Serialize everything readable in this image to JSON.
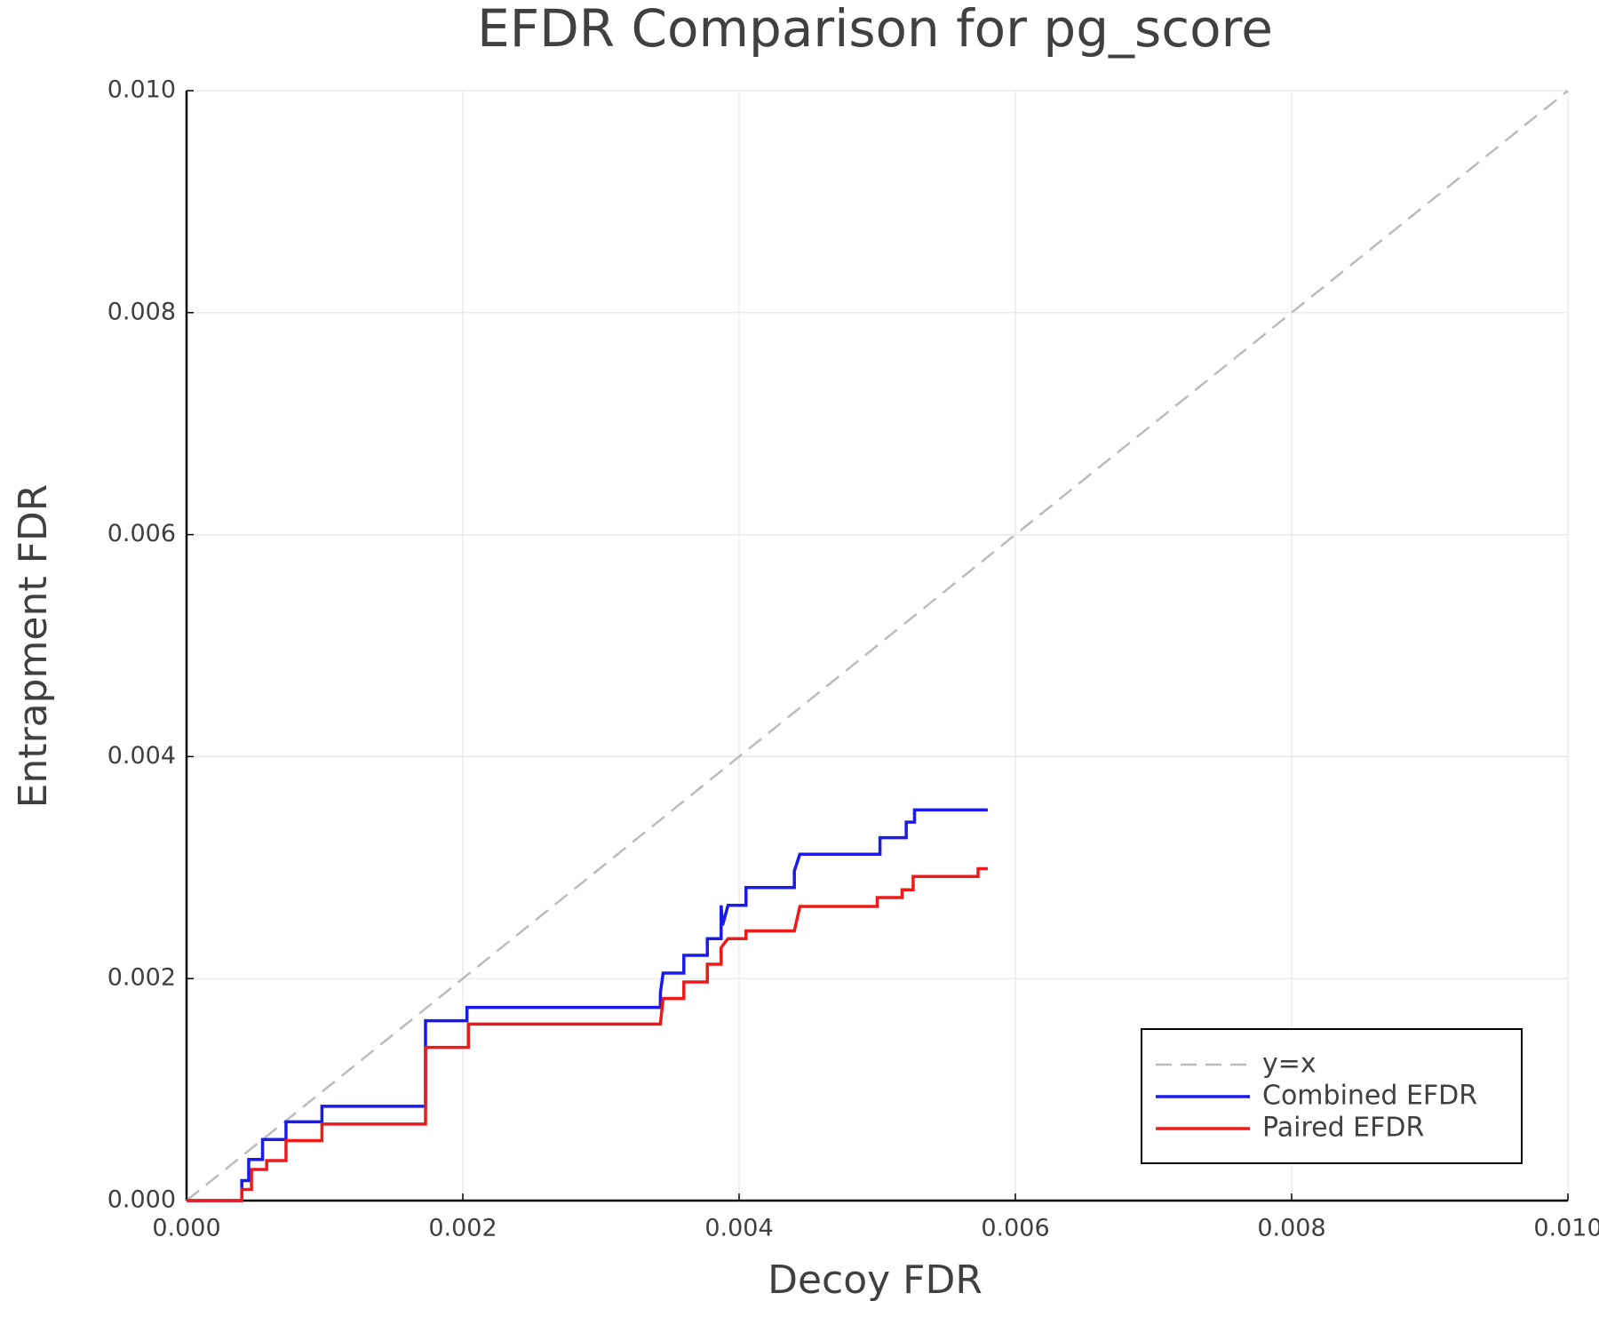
{
  "chart_data": {
    "type": "line",
    "title": "EFDR Comparison for pg_score",
    "x_label": "Decoy FDR",
    "y_label": "Entrapment FDR",
    "xlim": [
      0,
      0.01
    ],
    "ylim": [
      0,
      0.01
    ],
    "xticks": [
      {
        "value": 0,
        "label": "0.000"
      },
      {
        "value": 0.002,
        "label": "0.002"
      },
      {
        "value": 0.004,
        "label": "0.004"
      },
      {
        "value": 0.006,
        "label": "0.006"
      },
      {
        "value": 0.008,
        "label": "0.008"
      },
      {
        "value": 0.01,
        "label": "0.010"
      }
    ],
    "yticks": [
      {
        "value": 0,
        "label": "0.000"
      },
      {
        "value": 0.002,
        "label": "0.002"
      },
      {
        "value": 0.004,
        "label": "0.004"
      },
      {
        "value": 0.006,
        "label": "0.006"
      },
      {
        "value": 0.008,
        "label": "0.008"
      },
      {
        "value": 0.01,
        "label": "0.010"
      }
    ],
    "grid": true,
    "legend": "bottom right",
    "series": [
      {
        "name": "y=x",
        "color": "#bbbbbb",
        "dashed": true,
        "x": [
          0,
          0.01
        ],
        "values": [
          0,
          0.01
        ]
      },
      {
        "name": "Combined EFDR",
        "color": "#1a1aee",
        "dashed": false,
        "x": [
          0,
          0.0004,
          0.0004,
          0.00045,
          0.00045,
          0.00055,
          0.00055,
          0.00072,
          0.00072,
          0.00098,
          0.00098,
          0.00173,
          0.00173,
          0.00203,
          0.00203,
          0.00343,
          0.00343,
          0.00345,
          0.0036,
          0.0036,
          0.00377,
          0.00377,
          0.00387,
          0.00387,
          0.00388,
          0.00392,
          0.00405,
          0.00405,
          0.0044,
          0.0044,
          0.00444,
          0.00502,
          0.00502,
          0.00521,
          0.00521,
          0.00527,
          0.00527,
          0.0058
        ],
        "values": [
          0,
          0,
          0.00018,
          0.00018,
          0.00037,
          0.00037,
          0.00055,
          0.00055,
          0.00071,
          0.00071,
          0.00085,
          0.00085,
          0.00162,
          0.00162,
          0.00174,
          0.00174,
          0.00187,
          0.00205,
          0.00205,
          0.00221,
          0.00221,
          0.00236,
          0.00236,
          0.00266,
          0.00248,
          0.00266,
          0.00266,
          0.00282,
          0.00282,
          0.00297,
          0.00312,
          0.00312,
          0.00327,
          0.00327,
          0.00341,
          0.00341,
          0.00352,
          0.00352
        ]
      },
      {
        "name": "Paired EFDR",
        "color": "#ee1a1a",
        "dashed": false,
        "x": [
          0,
          0.0004,
          0.0004,
          0.00047,
          0.00047,
          0.00058,
          0.00058,
          0.00072,
          0.00072,
          0.00098,
          0.00098,
          0.00173,
          0.00173,
          0.00204,
          0.00204,
          0.00343,
          0.00345,
          0.0036,
          0.0036,
          0.00377,
          0.00377,
          0.00387,
          0.00387,
          0.00392,
          0.00405,
          0.00405,
          0.0044,
          0.00444,
          0.005,
          0.005,
          0.00518,
          0.00518,
          0.00526,
          0.00526,
          0.00573,
          0.00573,
          0.0058
        ],
        "values": [
          0,
          0,
          0.0001,
          0.0001,
          0.00028,
          0.00028,
          0.00036,
          0.00036,
          0.00054,
          0.00054,
          0.00069,
          0.00069,
          0.00138,
          0.00138,
          0.00159,
          0.00159,
          0.00182,
          0.00182,
          0.00197,
          0.00197,
          0.00213,
          0.00213,
          0.00228,
          0.00236,
          0.00236,
          0.00243,
          0.00243,
          0.00265,
          0.00265,
          0.00273,
          0.00273,
          0.0028,
          0.0028,
          0.00292,
          0.00292,
          0.00299,
          0.00299
        ]
      }
    ]
  }
}
